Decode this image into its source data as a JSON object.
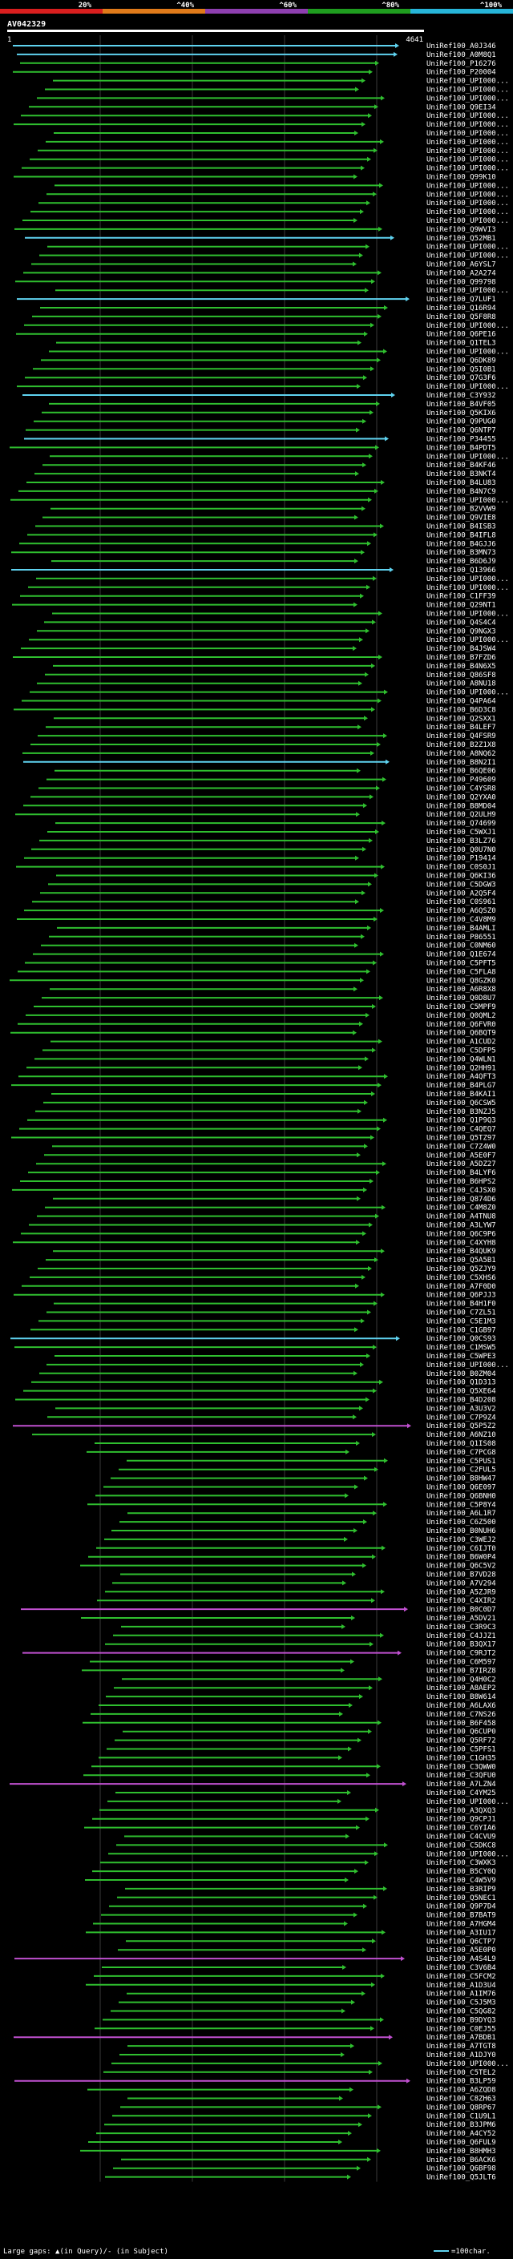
{
  "chart_data": {
    "type": "alignment-overview",
    "title": "AV042329",
    "query_length": 4641,
    "axis_start_label": "1",
    "axis_end_label": "4641",
    "legend": {
      "items": [
        {
          "label": "20%",
          "color": "#d91e1e"
        },
        {
          "label": "^40%",
          "color": "#e07a1a"
        },
        {
          "label": "^60%",
          "color": "#8e3fb0"
        },
        {
          "label": "^80%",
          "color": "#1f9d1f"
        },
        {
          "label": "^100%",
          "color": "#27b5d9"
        }
      ]
    },
    "footer": {
      "large_gaps_text": "Large gaps: ▲(in Query)/- (in Subject)",
      "scale_text": "=100char."
    },
    "colors": {
      "cyan": "#5fd3f0",
      "green": "#2fbf2f",
      "magenta": "#c050d0",
      "background": "#000000",
      "text": "#ffffff"
    },
    "hits": [
      "UniRef100_A0J346",
      "UniRef100_A0M8Q1",
      "UniRef100_P16276",
      "UniRef100_P20004",
      "UniRef100_UPI000...",
      "UniRef100_UPI000...",
      "UniRef100_UPI000...",
      "UniRef100_Q9EI34",
      "UniRef100_UPI000...",
      "UniRef100_UPI000...",
      "UniRef100_UPI000...",
      "UniRef100_UPI000...",
      "UniRef100_UPI000...",
      "UniRef100_UPI000...",
      "UniRef100_UPI000...",
      "UniRef100_Q99K10",
      "UniRef100_UPI000...",
      "UniRef100_UPI000...",
      "UniRef100_UPI000...",
      "UniRef100_UPI000...",
      "UniRef100_UPI000...",
      "UniRef100_Q9WVI3",
      "UniRef100_Q52MB1",
      "UniRef100_UPI000...",
      "UniRef100_UPI000...",
      "UniRef100_A6YSL7",
      "UniRef100_A2A274",
      "UniRef100_Q99798",
      "UniRef100_UPI000...",
      "UniRef100_Q7LUF1",
      "UniRef100_Q16R94",
      "UniRef100_Q5F8R8",
      "UniRef100_UPI000...",
      "UniRef100_Q6PE16",
      "UniRef100_Q1TEL3",
      "UniRef100_UPI000...",
      "UniRef100_Q6DK89",
      "UniRef100_Q5I0B1",
      "UniRef100_Q7G3F6",
      "UniRef100_UPI000...",
      "UniRef100_C3Y932",
      "UniRef100_B4VF05",
      "UniRef100_Q5KIX6",
      "UniRef100_Q9PUG0",
      "UniRef100_Q6NTP7",
      "UniRef100_P34455",
      "UniRef100_B4PDT5",
      "UniRef100_UPI000...",
      "UniRef100_B4KF46",
      "UniRef100_B3NKT4",
      "UniRef100_B4LU83",
      "UniRef100_B4N7C9",
      "UniRef100_UPI000...",
      "UniRef100_B2VVW9",
      "UniRef100_Q9VIE8",
      "UniRef100_B4ISB3",
      "UniRef100_B4IFL8",
      "UniRef100_B4GJJ6",
      "UniRef100_B3MN73",
      "UniRef100_B6D6J9",
      "UniRef100_Q13966",
      "UniRef100_UPI000...",
      "UniRef100_UPI000...",
      "UniRef100_C1FF39",
      "UniRef100_Q29NT1",
      "UniRef100_UPI000...",
      "UniRef100_Q4S4C4",
      "UniRef100_Q9NGX3",
      "UniRef100_UPI000...",
      "UniRef100_B4JSW4",
      "UniRef100_B7FZD6",
      "UniRef100_B4N6X5",
      "UniRef100_Q86SF8",
      "UniRef100_A8NU18",
      "UniRef100_UPI000...",
      "UniRef100_Q4PA64",
      "UniRef100_B6D3C8",
      "UniRef100_Q2SXX1",
      "UniRef100_B4LEF7",
      "UniRef100_Q4FSR9",
      "UniRef100_B2Z1X8",
      "UniRef100_A8NQ62",
      "UniRef100_B8N2I1",
      "UniRef100_B6QE06",
      "UniRef100_P49609",
      "UniRef100_C4YSR8",
      "UniRef100_Q2YXA0",
      "UniRef100_B8MD04",
      "UniRef100_Q2ULH9",
      "UniRef100_Q74699",
      "UniRef100_C5WXJ1",
      "UniRef100_B3LZ76",
      "UniRef100_Q0U7N0",
      "UniRef100_P19414",
      "UniRef100_C0S0J1",
      "UniRef100_Q6KI36",
      "UniRef100_C5DGW3",
      "UniRef100_A2Q5F4",
      "UniRef100_C0S961",
      "UniRef100_A6QSZ0",
      "UniRef100_C4V8M9",
      "UniRef100_B4AMLI",
      "UniRef100_P86551",
      "UniRef100_C0NM60",
      "UniRef100_Q1E674",
      "UniRef100_C5PFT5",
      "UniRef100_C5FLA8",
      "UniRef100_Q8GZK0",
      "UniRef100_A6R8X8",
      "UniRef100_Q0D8U7",
      "UniRef100_C5MPF9",
      "UniRef100_Q0QML2",
      "UniRef100_Q6FVR0",
      "UniRef100_Q6BQT9",
      "UniRef100_A1CUD2",
      "UniRef100_C5DFP5",
      "UniRef100_Q4WLN1",
      "UniRef100_Q2HH91",
      "UniRef100_A4QFT3",
      "UniRef100_B4PLG7",
      "UniRef100_B4KAI1",
      "UniRef100_Q6CSW5",
      "UniRef100_B3NZJ5",
      "UniRef100_Q1P9Q3",
      "UniRef100_C4QEQ7",
      "UniRef100_Q5TZ97",
      "UniRef100_C7Z4W0",
      "UniRef100_A5E0F7",
      "UniRef100_A5DZ27",
      "UniRef100_B4LYF6",
      "UniRef100_B6HPS2",
      "UniRef100_C4JSX0",
      "UniRef100_Q874D6",
      "UniRef100_C4M8Z0",
      "UniRef100_A4TNU8",
      "UniRef100_A3LYW7",
      "UniRef100_Q6C9P6",
      "UniRef100_C4XYH8",
      "UniRef100_B4QUK9",
      "UniRef100_Q5A5B1",
      "UniRef100_Q5ZJY9",
      "UniRef100_C5XHS6",
      "UniRef100_A7F0D0",
      "UniRef100_Q6PJJ3",
      "UniRef100_B4H1F0",
      "UniRef100_C7ZL51",
      "UniRef100_C5E1M3",
      "UniRef100_C1GB97",
      "UniRef100_Q0CS93",
      "UniRef100_C1MSW5",
      "UniRef100_C5WPE3",
      "UniRef100_UPI000...",
      "UniRef100_B0ZM04",
      "UniRef100_Q1D313",
      "UniRef100_Q5XE64",
      "UniRef100_B4D208",
      "UniRef100_A3U3V2",
      "UniRef100_C7P9Z4",
      "UniRef100_Q5P5Z2",
      "UniRef100_A6NZ10",
      "UniRef100_Q1IS08",
      "UniRef100_C7PCG8",
      "UniRef100_C5PUS1",
      "UniRef100_C2FUL5",
      "UniRef100_B8HW47",
      "UniRef100_Q6E097",
      "UniRef100_Q6BNH0",
      "UniRef100_C5P8Y4",
      "UniRef100_A6L1R7",
      "UniRef100_C6Z500",
      "UniRef100_B0NUH6",
      "UniRef100_C3WEJ2",
      "UniRef100_C6IJT0",
      "UniRef100_B6W0P4",
      "UniRef100_Q6C5V2",
      "UniRef100_B7VD28",
      "UniRef100_A7V294",
      "UniRef100_A5ZJR9",
      "UniRef100_C4XIR2",
      "UniRef100_B0C0D7",
      "UniRef100_A5DV21",
      "UniRef100_C3R9C3",
      "UniRef100_C4JJZ1",
      "UniRef100_B3QX17",
      "UniRef100_C9RJT2",
      "UniRef100_C6M597",
      "UniRef100_B7IRZ8",
      "UniRef100_Q4H0C2",
      "UniRef100_A8AEP2",
      "UniRef100_B8W614",
      "UniRef100_A6LAX6",
      "UniRef100_C7NS26",
      "UniRef100_B6F458",
      "UniRef100_Q6CUP0",
      "UniRef100_Q5RF72",
      "UniRef100_C5PFS1",
      "UniRef100_C1GH35",
      "UniRef100_C3QWW0",
      "UniRef100_C3QFU0",
      "UniRef100_A7LZN4",
      "UniRef100_C4YM25",
      "UniRef100_UPI000...",
      "UniRef100_A3QXQ3",
      "UniRef100_Q9CPJ1",
      "UniRef100_C6YIA6",
      "UniRef100_C4CVU9",
      "UniRef100_C5DKC8",
      "UniRef100_UPI000...",
      "UniRef100_C3WXK3",
      "UniRef100_B5CY0Q",
      "UniRef100_C4W5V9",
      "UniRef100_B3RIP9",
      "UniRef100_Q5NEC1",
      "UniRef100_Q9P7D4",
      "UniRef100_B7BAT9",
      "UniRef100_A7HGM4",
      "UniRef100_A3IU17",
      "UniRef100_Q6CTP7",
      "UniRef100_A5E0P0",
      "UniRef100_A4S4L9",
      "UniRef100_C3V6B4",
      "UniRef100_C5FCM2",
      "UniRef100_A1D3U4",
      "UniRef100_A1IM76",
      "UniRef100_C5J5M3",
      "UniRef100_C5QG82",
      "UniRef100_B9DYQ3",
      "UniRef100_C0EJ55",
      "UniRef100_A7BDB1",
      "UniRef100_A7TGT8",
      "UniRef100_A1DJY0",
      "UniRef100_UPI000...",
      "UniRef100_C5TEL2",
      "UniRef100_B3LP59",
      "UniRef100_A6ZQD8",
      "UniRef100_C8ZH63",
      "UniRef100_Q8RP67",
      "UniRef100_C1U9L1",
      "UniRef100_B3JPM6",
      "UniRef100_A4CY52",
      "UniRef100_Q6FUL9",
      "UniRef100_B8HMH3",
      "UniRef100_B6ACK6",
      "UniRef100_Q6BF98",
      "UniRef100_Q5JLT6"
    ]
  }
}
